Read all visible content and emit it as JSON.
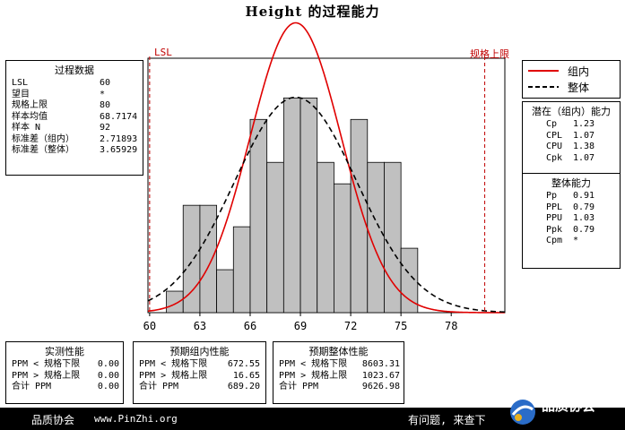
{
  "title": "Height 的过程能力",
  "lsl_marker": "LSL",
  "usl_marker": "规格上限",
  "process_data": {
    "header": "过程数据",
    "rows": [
      {
        "label": "LSL",
        "value": "60"
      },
      {
        "label": "望目",
        "value": "*"
      },
      {
        "label": "规格上限",
        "value": "80"
      },
      {
        "label": "样本均值",
        "value": "68.7174"
      },
      {
        "label": "样本 N",
        "value": "92"
      },
      {
        "label": "标准差（组内）",
        "value": "2.71893"
      },
      {
        "label": "标准差（整体）",
        "value": "3.65929"
      }
    ]
  },
  "legend": {
    "within": "组内",
    "overall": "整体"
  },
  "potential": {
    "header": "潜在（组内）能力",
    "rows": [
      {
        "label": "Cp",
        "value": "1.23"
      },
      {
        "label": "CPL",
        "value": "1.07"
      },
      {
        "label": "CPU",
        "value": "1.38"
      },
      {
        "label": "Cpk",
        "value": "1.07"
      }
    ]
  },
  "overall_cap": {
    "header": "整体能力",
    "rows": [
      {
        "label": "Pp",
        "value": "0.91"
      },
      {
        "label": "PPL",
        "value": "0.79"
      },
      {
        "label": "PPU",
        "value": "1.03"
      },
      {
        "label": "Ppk",
        "value": "0.79"
      },
      {
        "label": "Cpm",
        "value": "*"
      }
    ]
  },
  "observed": {
    "header": "实测性能",
    "rows": [
      {
        "label": "PPM < 规格下限",
        "value": "0.00"
      },
      {
        "label": "PPM > 规格上限",
        "value": "0.00"
      },
      {
        "label": "合计 PPM",
        "value": "0.00"
      }
    ]
  },
  "expected_within": {
    "header": "预期组内性能",
    "rows": [
      {
        "label": "PPM < 规格下限",
        "value": "672.55"
      },
      {
        "label": "PPM > 规格上限",
        "value": "16.65"
      },
      {
        "label": "合计 PPM",
        "value": "689.20"
      }
    ]
  },
  "expected_overall": {
    "header": "预期整体性能",
    "rows": [
      {
        "label": "PPM < 规格下限",
        "value": "8603.31"
      },
      {
        "label": "PPM > 规格上限",
        "value": "1023.67"
      },
      {
        "label": "合计 PPM",
        "value": "9626.98"
      }
    ]
  },
  "footer": {
    "left": "品质协会",
    "url": "www.PinZhi.org",
    "right": "有问题, 来查下",
    "logo_text": "品质协会"
  },
  "colors": {
    "within_curve": "#e00000",
    "overall_curve": "#000000",
    "bar_fill": "#c0c0c0",
    "spec_line": "#c00000"
  },
  "chart_data": {
    "type": "bar",
    "title": "Height 的过程能力",
    "x_ticks": [
      60,
      63,
      66,
      69,
      72,
      75,
      78
    ],
    "xlim": [
      59.9,
      81.2
    ],
    "bin_width": 1,
    "bins": [
      {
        "x0": 61,
        "count": 1
      },
      {
        "x0": 62,
        "count": 5
      },
      {
        "x0": 63,
        "count": 5
      },
      {
        "x0": 64,
        "count": 2
      },
      {
        "x0": 65,
        "count": 4
      },
      {
        "x0": 66,
        "count": 9
      },
      {
        "x0": 67,
        "count": 7
      },
      {
        "x0": 68,
        "count": 10
      },
      {
        "x0": 69,
        "count": 10
      },
      {
        "x0": 70,
        "count": 7
      },
      {
        "x0": 71,
        "count": 6
      },
      {
        "x0": 72,
        "count": 9
      },
      {
        "x0": 73,
        "count": 7
      },
      {
        "x0": 74,
        "count": 7
      },
      {
        "x0": 75,
        "count": 3
      }
    ],
    "lsl": 60,
    "usl": 80,
    "mean": 68.7174,
    "n": 92,
    "sd_within": 2.71893,
    "sd_overall": 3.65929,
    "series": [
      {
        "name": "组内",
        "style": "solid-red"
      },
      {
        "name": "整体",
        "style": "dashed-black"
      }
    ]
  }
}
